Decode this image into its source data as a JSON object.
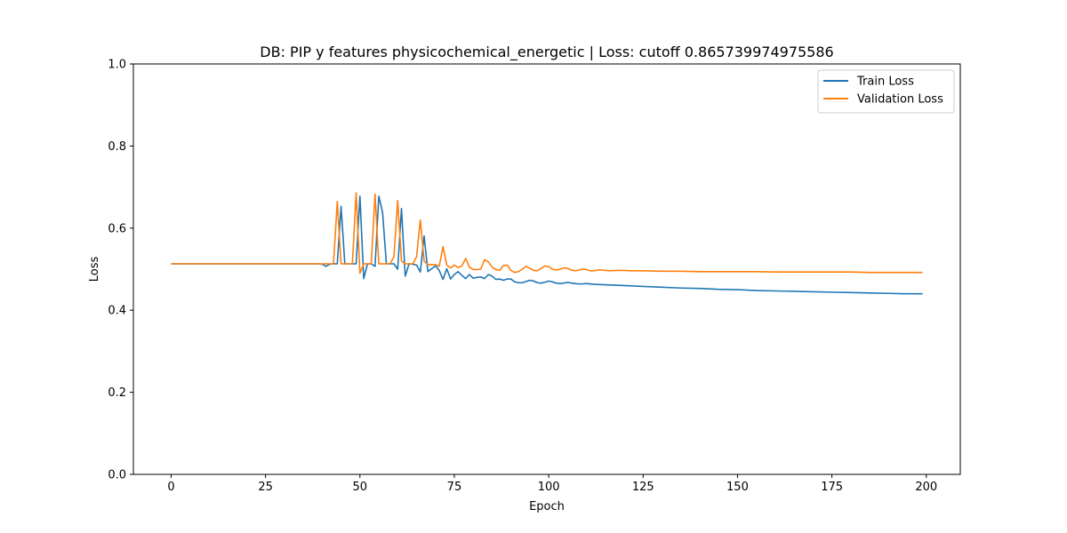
{
  "chart_data": {
    "type": "line",
    "title": "DB: PIP y features physicochemical_energetic | Loss: cutoff 0.865739974975586",
    "xlabel": "Epoch",
    "ylabel": "Loss",
    "xlim": [
      -10,
      209
    ],
    "ylim": [
      0.0,
      1.0
    ],
    "xticks": [
      0,
      25,
      50,
      75,
      100,
      125,
      150,
      175,
      200
    ],
    "yticks": [
      0.0,
      0.2,
      0.4,
      0.6,
      0.8,
      1.0
    ],
    "xtick_labels": [
      "0",
      "25",
      "50",
      "75",
      "100",
      "125",
      "150",
      "175",
      "200"
    ],
    "ytick_labels": [
      "0.0",
      "0.2",
      "0.4",
      "0.6",
      "0.8",
      "1.0"
    ],
    "grid": false,
    "legend_position": "top-right",
    "series": [
      {
        "name": "Train Loss",
        "color": "#1f77b4",
        "points": [
          [
            0,
            0.513
          ],
          [
            10,
            0.513
          ],
          [
            20,
            0.513
          ],
          [
            30,
            0.513
          ],
          [
            39,
            0.513
          ],
          [
            40,
            0.512
          ],
          [
            41,
            0.507
          ],
          [
            42,
            0.512
          ],
          [
            43,
            0.513
          ],
          [
            44,
            0.513
          ],
          [
            45,
            0.653
          ],
          [
            46,
            0.513
          ],
          [
            47,
            0.513
          ],
          [
            48,
            0.513
          ],
          [
            49,
            0.513
          ],
          [
            50,
            0.678
          ],
          [
            51,
            0.477
          ],
          [
            52,
            0.513
          ],
          [
            53,
            0.513
          ],
          [
            54,
            0.507
          ],
          [
            55,
            0.678
          ],
          [
            56,
            0.638
          ],
          [
            57,
            0.513
          ],
          [
            58,
            0.513
          ],
          [
            59,
            0.513
          ],
          [
            60,
            0.5
          ],
          [
            61,
            0.648
          ],
          [
            62,
            0.483
          ],
          [
            63,
            0.513
          ],
          [
            64,
            0.512
          ],
          [
            65,
            0.51
          ],
          [
            66,
            0.493
          ],
          [
            67,
            0.581
          ],
          [
            68,
            0.494
          ],
          [
            69,
            0.501
          ],
          [
            70,
            0.508
          ],
          [
            71,
            0.497
          ],
          [
            72,
            0.475
          ],
          [
            73,
            0.501
          ],
          [
            74,
            0.476
          ],
          [
            75,
            0.487
          ],
          [
            76,
            0.494
          ],
          [
            77,
            0.485
          ],
          [
            78,
            0.477
          ],
          [
            79,
            0.487
          ],
          [
            80,
            0.478
          ],
          [
            81,
            0.48
          ],
          [
            82,
            0.481
          ],
          [
            83,
            0.477
          ],
          [
            84,
            0.487
          ],
          [
            85,
            0.483
          ],
          [
            86,
            0.475
          ],
          [
            87,
            0.476
          ],
          [
            88,
            0.473
          ],
          [
            89,
            0.476
          ],
          [
            90,
            0.476
          ],
          [
            91,
            0.469
          ],
          [
            92,
            0.467
          ],
          [
            93,
            0.467
          ],
          [
            94,
            0.47
          ],
          [
            95,
            0.473
          ],
          [
            96,
            0.471
          ],
          [
            97,
            0.467
          ],
          [
            98,
            0.466
          ],
          [
            99,
            0.468
          ],
          [
            100,
            0.471
          ],
          [
            101,
            0.469
          ],
          [
            102,
            0.466
          ],
          [
            103,
            0.465
          ],
          [
            104,
            0.466
          ],
          [
            105,
            0.468
          ],
          [
            106,
            0.466
          ],
          [
            107,
            0.465
          ],
          [
            108,
            0.464
          ],
          [
            109,
            0.464
          ],
          [
            110,
            0.465
          ],
          [
            112,
            0.463
          ],
          [
            115,
            0.462
          ],
          [
            120,
            0.46
          ],
          [
            125,
            0.458
          ],
          [
            130,
            0.456
          ],
          [
            135,
            0.454
          ],
          [
            140,
            0.453
          ],
          [
            145,
            0.451
          ],
          [
            150,
            0.45
          ],
          [
            155,
            0.448
          ],
          [
            160,
            0.447
          ],
          [
            165,
            0.446
          ],
          [
            170,
            0.445
          ],
          [
            175,
            0.444
          ],
          [
            180,
            0.443
          ],
          [
            185,
            0.442
          ],
          [
            190,
            0.441
          ],
          [
            195,
            0.44
          ],
          [
            199,
            0.44
          ]
        ]
      },
      {
        "name": "Validation Loss",
        "color": "#ff7f0e",
        "points": [
          [
            0,
            0.513
          ],
          [
            10,
            0.513
          ],
          [
            20,
            0.513
          ],
          [
            30,
            0.513
          ],
          [
            39,
            0.513
          ],
          [
            40,
            0.513
          ],
          [
            41,
            0.513
          ],
          [
            42,
            0.513
          ],
          [
            43,
            0.513
          ],
          [
            44,
            0.665
          ],
          [
            45,
            0.513
          ],
          [
            46,
            0.513
          ],
          [
            47,
            0.513
          ],
          [
            48,
            0.513
          ],
          [
            49,
            0.686
          ],
          [
            50,
            0.49
          ],
          [
            51,
            0.513
          ],
          [
            52,
            0.513
          ],
          [
            53,
            0.513
          ],
          [
            54,
            0.683
          ],
          [
            55,
            0.513
          ],
          [
            56,
            0.513
          ],
          [
            57,
            0.513
          ],
          [
            58,
            0.513
          ],
          [
            59,
            0.53
          ],
          [
            60,
            0.667
          ],
          [
            61,
            0.52
          ],
          [
            62,
            0.513
          ],
          [
            63,
            0.513
          ],
          [
            64,
            0.513
          ],
          [
            65,
            0.53
          ],
          [
            66,
            0.62
          ],
          [
            67,
            0.52
          ],
          [
            68,
            0.511
          ],
          [
            69,
            0.511
          ],
          [
            70,
            0.511
          ],
          [
            71,
            0.507
          ],
          [
            72,
            0.555
          ],
          [
            73,
            0.51
          ],
          [
            74,
            0.503
          ],
          [
            75,
            0.51
          ],
          [
            76,
            0.504
          ],
          [
            77,
            0.508
          ],
          [
            78,
            0.526
          ],
          [
            79,
            0.505
          ],
          [
            80,
            0.499
          ],
          [
            81,
            0.499
          ],
          [
            82,
            0.5
          ],
          [
            83,
            0.523
          ],
          [
            84,
            0.518
          ],
          [
            85,
            0.505
          ],
          [
            86,
            0.499
          ],
          [
            87,
            0.497
          ],
          [
            88,
            0.509
          ],
          [
            89,
            0.51
          ],
          [
            90,
            0.497
          ],
          [
            91,
            0.492
          ],
          [
            92,
            0.494
          ],
          [
            93,
            0.5
          ],
          [
            94,
            0.507
          ],
          [
            95,
            0.502
          ],
          [
            96,
            0.497
          ],
          [
            97,
            0.496
          ],
          [
            98,
            0.502
          ],
          [
            99,
            0.508
          ],
          [
            100,
            0.506
          ],
          [
            101,
            0.5
          ],
          [
            102,
            0.498
          ],
          [
            103,
            0.5
          ],
          [
            104,
            0.503
          ],
          [
            105,
            0.502
          ],
          [
            106,
            0.498
          ],
          [
            107,
            0.496
          ],
          [
            108,
            0.498
          ],
          [
            109,
            0.5
          ],
          [
            110,
            0.499
          ],
          [
            111,
            0.496
          ],
          [
            112,
            0.496
          ],
          [
            113,
            0.498
          ],
          [
            114,
            0.498
          ],
          [
            115,
            0.497
          ],
          [
            116,
            0.496
          ],
          [
            118,
            0.497
          ],
          [
            120,
            0.497
          ],
          [
            122,
            0.496
          ],
          [
            125,
            0.496
          ],
          [
            130,
            0.495
          ],
          [
            135,
            0.495
          ],
          [
            140,
            0.494
          ],
          [
            145,
            0.494
          ],
          [
            150,
            0.494
          ],
          [
            155,
            0.494
          ],
          [
            160,
            0.493
          ],
          [
            165,
            0.493
          ],
          [
            170,
            0.493
          ],
          [
            175,
            0.493
          ],
          [
            180,
            0.493
          ],
          [
            185,
            0.492
          ],
          [
            190,
            0.492
          ],
          [
            195,
            0.492
          ],
          [
            199,
            0.492
          ]
        ]
      }
    ]
  }
}
